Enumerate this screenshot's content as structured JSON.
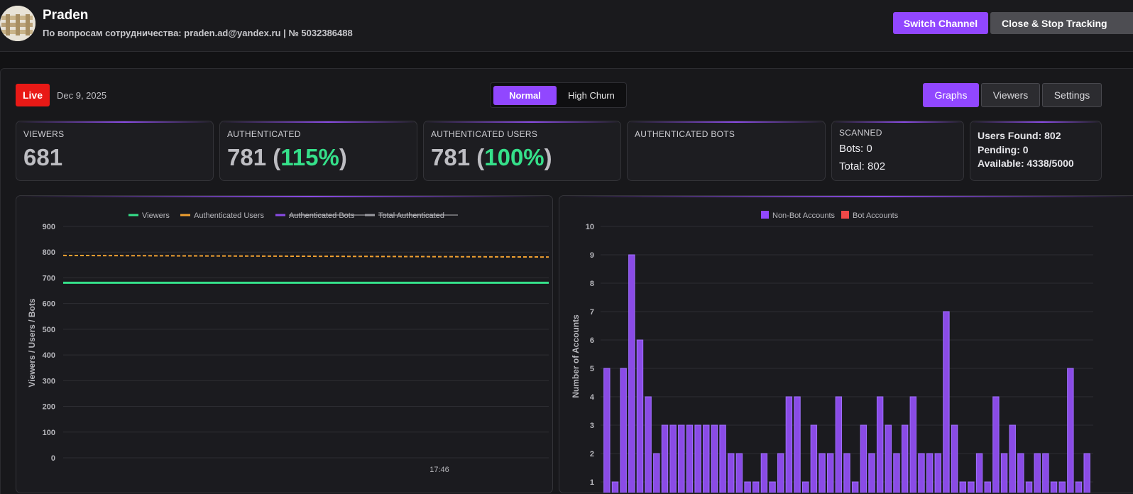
{
  "header": {
    "channel_name": "Praden",
    "subtitle": "По вопросам сотрудничества: praden.ad@yandex.ru | № 5032386488",
    "switch_label": "Switch Channel",
    "close_label": "Close & Stop Tracking"
  },
  "status": {
    "live_label": "Live",
    "date": "Dec 9, 2025"
  },
  "mode_toggle": {
    "normal": "Normal",
    "high_churn": "High Churn",
    "selected": "Normal"
  },
  "view_tabs": {
    "graphs": "Graphs",
    "viewers": "Viewers",
    "settings": "Settings",
    "selected": "Graphs"
  },
  "stats": {
    "viewers": {
      "label": "VIEWERS",
      "value": "681"
    },
    "authenticated": {
      "label": "AUTHENTICATED",
      "value": "781",
      "open": "(",
      "pct": "115%",
      "close": ")"
    },
    "authenticated_users": {
      "label": "AUTHENTICATED USERS",
      "value": "781",
      "open": "(",
      "pct": "100%",
      "close": ")"
    },
    "authenticated_bots": {
      "label": "AUTHENTICATED BOTS"
    },
    "scanned": {
      "label": "SCANNED",
      "bots": "Bots: 0",
      "total": "Total: 802"
    },
    "found": {
      "users_found": "Users Found: 802",
      "pending": "Pending: 0",
      "available": "Available: 4338/5000"
    }
  },
  "colors": {
    "accent": "#9147ff",
    "live": "#e91916",
    "green": "#35e08a",
    "orange": "#f0a030",
    "bot_red": "#f04848"
  },
  "chart_data": [
    {
      "type": "line",
      "title": "",
      "xlabel": "",
      "ylabel": "Viewers / Users / Bots",
      "ylim": [
        0,
        900
      ],
      "yticks": [
        0,
        100,
        200,
        300,
        400,
        500,
        600,
        700,
        800,
        900
      ],
      "x_ticks": [
        "17:46"
      ],
      "legend": [
        {
          "name": "Viewers",
          "color": "#35e08a",
          "hidden": false
        },
        {
          "name": "Authenticated Users",
          "color": "#f0a030",
          "hidden": false
        },
        {
          "name": "Authenticated Bots",
          "color": "#8a4be6",
          "hidden": true
        },
        {
          "name": "Total Authenticated",
          "color": "#9a9aa0",
          "hidden": true
        }
      ],
      "series": [
        {
          "name": "Viewers",
          "values": [
            681,
            681
          ],
          "style": "solid"
        },
        {
          "name": "Authenticated Users",
          "values": [
            787,
            781
          ],
          "style": "dashed"
        }
      ],
      "grid": true
    },
    {
      "type": "bar",
      "title": "",
      "xlabel": "",
      "ylabel": "Number of Accounts",
      "ylim": [
        0,
        10
      ],
      "yticks": [
        1,
        2,
        3,
        4,
        5,
        6,
        7,
        8,
        9,
        10
      ],
      "legend": [
        {
          "name": "Non-Bot Accounts",
          "color": "#9147ff"
        },
        {
          "name": "Bot Accounts",
          "color": "#f04848"
        }
      ],
      "series": [
        {
          "name": "Non-Bot Accounts",
          "values": [
            5,
            1,
            5,
            9,
            6,
            4,
            2,
            3,
            3,
            3,
            3,
            3,
            3,
            3,
            3,
            2,
            2,
            1,
            1,
            2,
            1,
            2,
            4,
            4,
            1,
            3,
            2,
            2,
            4,
            2,
            1,
            3,
            2,
            4,
            3,
            2,
            3,
            4,
            2,
            2,
            2,
            7,
            3,
            1,
            1,
            2,
            1,
            4,
            2,
            3,
            2,
            1,
            2,
            2,
            1,
            1,
            5,
            1,
            2
          ]
        },
        {
          "name": "Bot Accounts",
          "values": []
        }
      ],
      "grid": true
    }
  ]
}
